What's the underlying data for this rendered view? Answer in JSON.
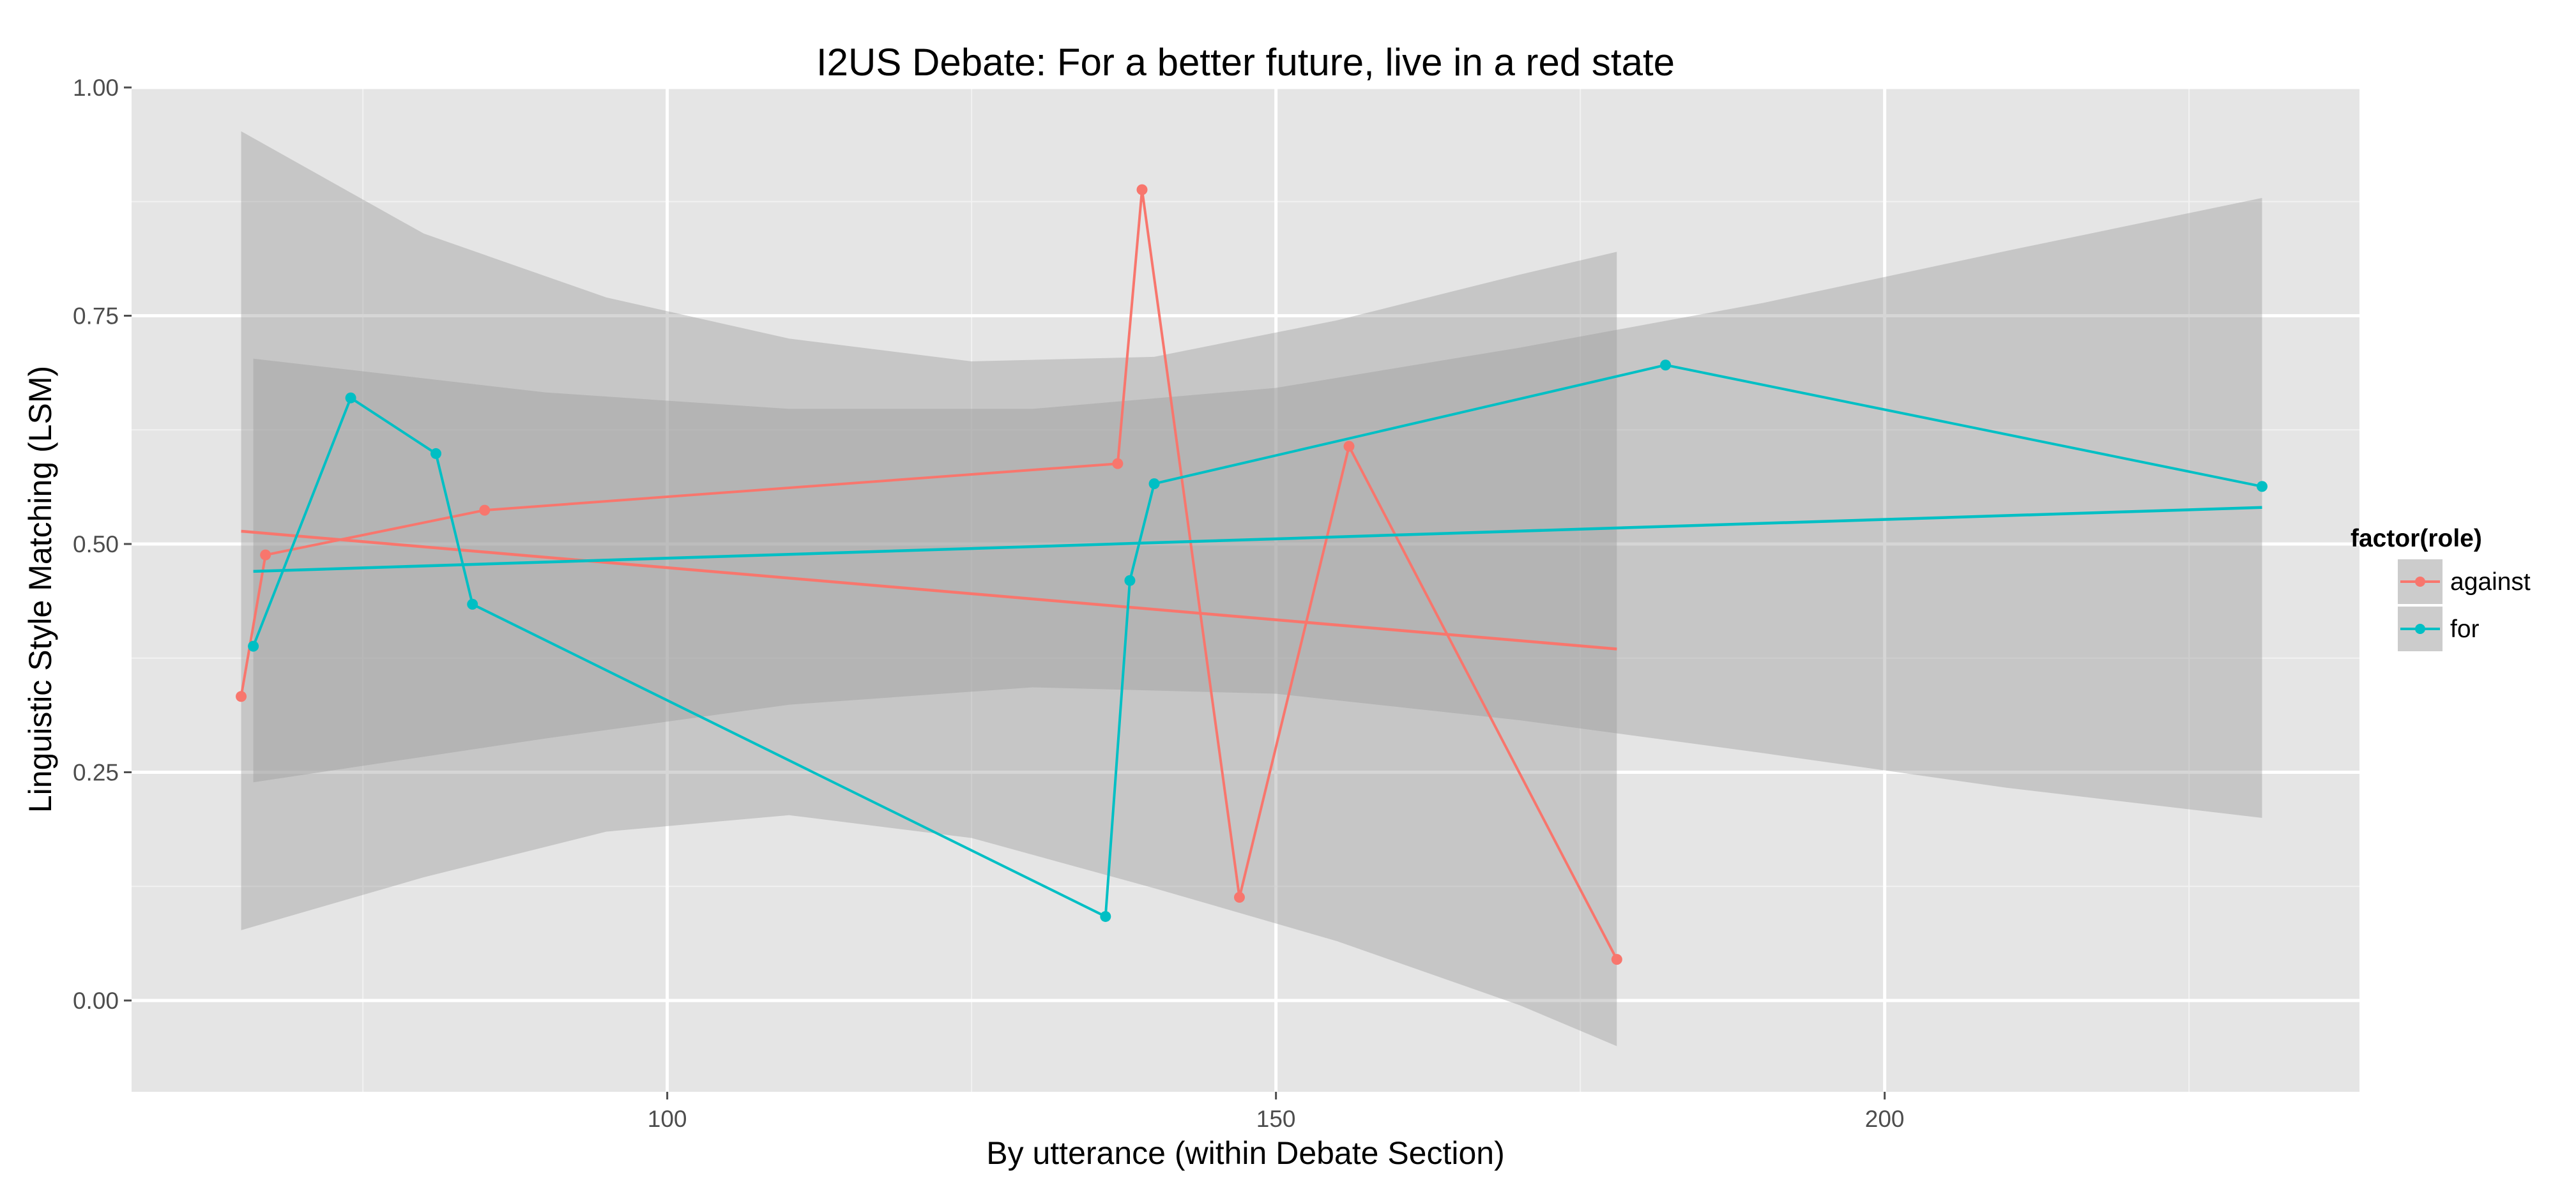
{
  "chart_data": {
    "type": "line",
    "title": "I2US Debate: For a better future, live in a red state",
    "xlabel": "By utterance (within Debate Section)",
    "ylabel": "Linguistic Style Matching (LSM)",
    "xlim": [
      56,
      239
    ],
    "ylim": [
      -0.1,
      1.0
    ],
    "x_ticks": [
      100,
      150,
      200
    ],
    "x_tick_labels": [
      "100",
      "150",
      "200"
    ],
    "y_ticks": [
      0.0,
      0.25,
      0.5,
      0.75,
      1.0
    ],
    "y_tick_labels": [
      "0.00",
      "0.25",
      "0.50",
      "0.75",
      "1.00"
    ],
    "grid": true,
    "legend": {
      "title": "factor(role)",
      "position": "right",
      "entries": [
        "against",
        "for"
      ]
    },
    "colors": {
      "against": "#F8766D",
      "for": "#00BFC4",
      "panel_background": "#E5E5E5",
      "confidence_band": "#999999"
    },
    "series": [
      {
        "name": "against",
        "x": [
          65,
          67,
          85,
          137,
          139,
          147,
          156,
          178
        ],
        "y": [
          0.333,
          0.488,
          0.537,
          0.588,
          0.888,
          0.113,
          0.607,
          0.045
        ],
        "smooth": {
          "x": [
            65,
            178
          ],
          "y": [
            0.514,
            0.385
          ]
        },
        "band": {
          "x": [
            65,
            80,
            95,
            110,
            125,
            140,
            155,
            170,
            178
          ],
          "lower": [
            0.077,
            0.135,
            0.185,
            0.203,
            0.178,
            0.123,
            0.065,
            -0.005,
            -0.05
          ],
          "upper": [
            0.952,
            0.84,
            0.77,
            0.725,
            0.7,
            0.705,
            0.745,
            0.795,
            0.82
          ]
        }
      },
      {
        "name": "for",
        "x": [
          66,
          74,
          81,
          84,
          136,
          138,
          140,
          182,
          231
        ],
        "y": [
          0.388,
          0.66,
          0.599,
          0.434,
          0.092,
          0.46,
          0.566,
          0.696,
          0.563
        ],
        "smooth": {
          "x": [
            66,
            231
          ],
          "y": [
            0.47,
            0.54
          ]
        },
        "band": {
          "x": [
            66,
            90,
            110,
            130,
            150,
            170,
            190,
            210,
            231
          ],
          "lower": [
            0.239,
            0.287,
            0.324,
            0.343,
            0.336,
            0.307,
            0.271,
            0.233,
            0.2
          ],
          "upper": [
            0.703,
            0.666,
            0.648,
            0.648,
            0.671,
            0.715,
            0.764,
            0.821,
            0.879
          ]
        }
      }
    ]
  }
}
